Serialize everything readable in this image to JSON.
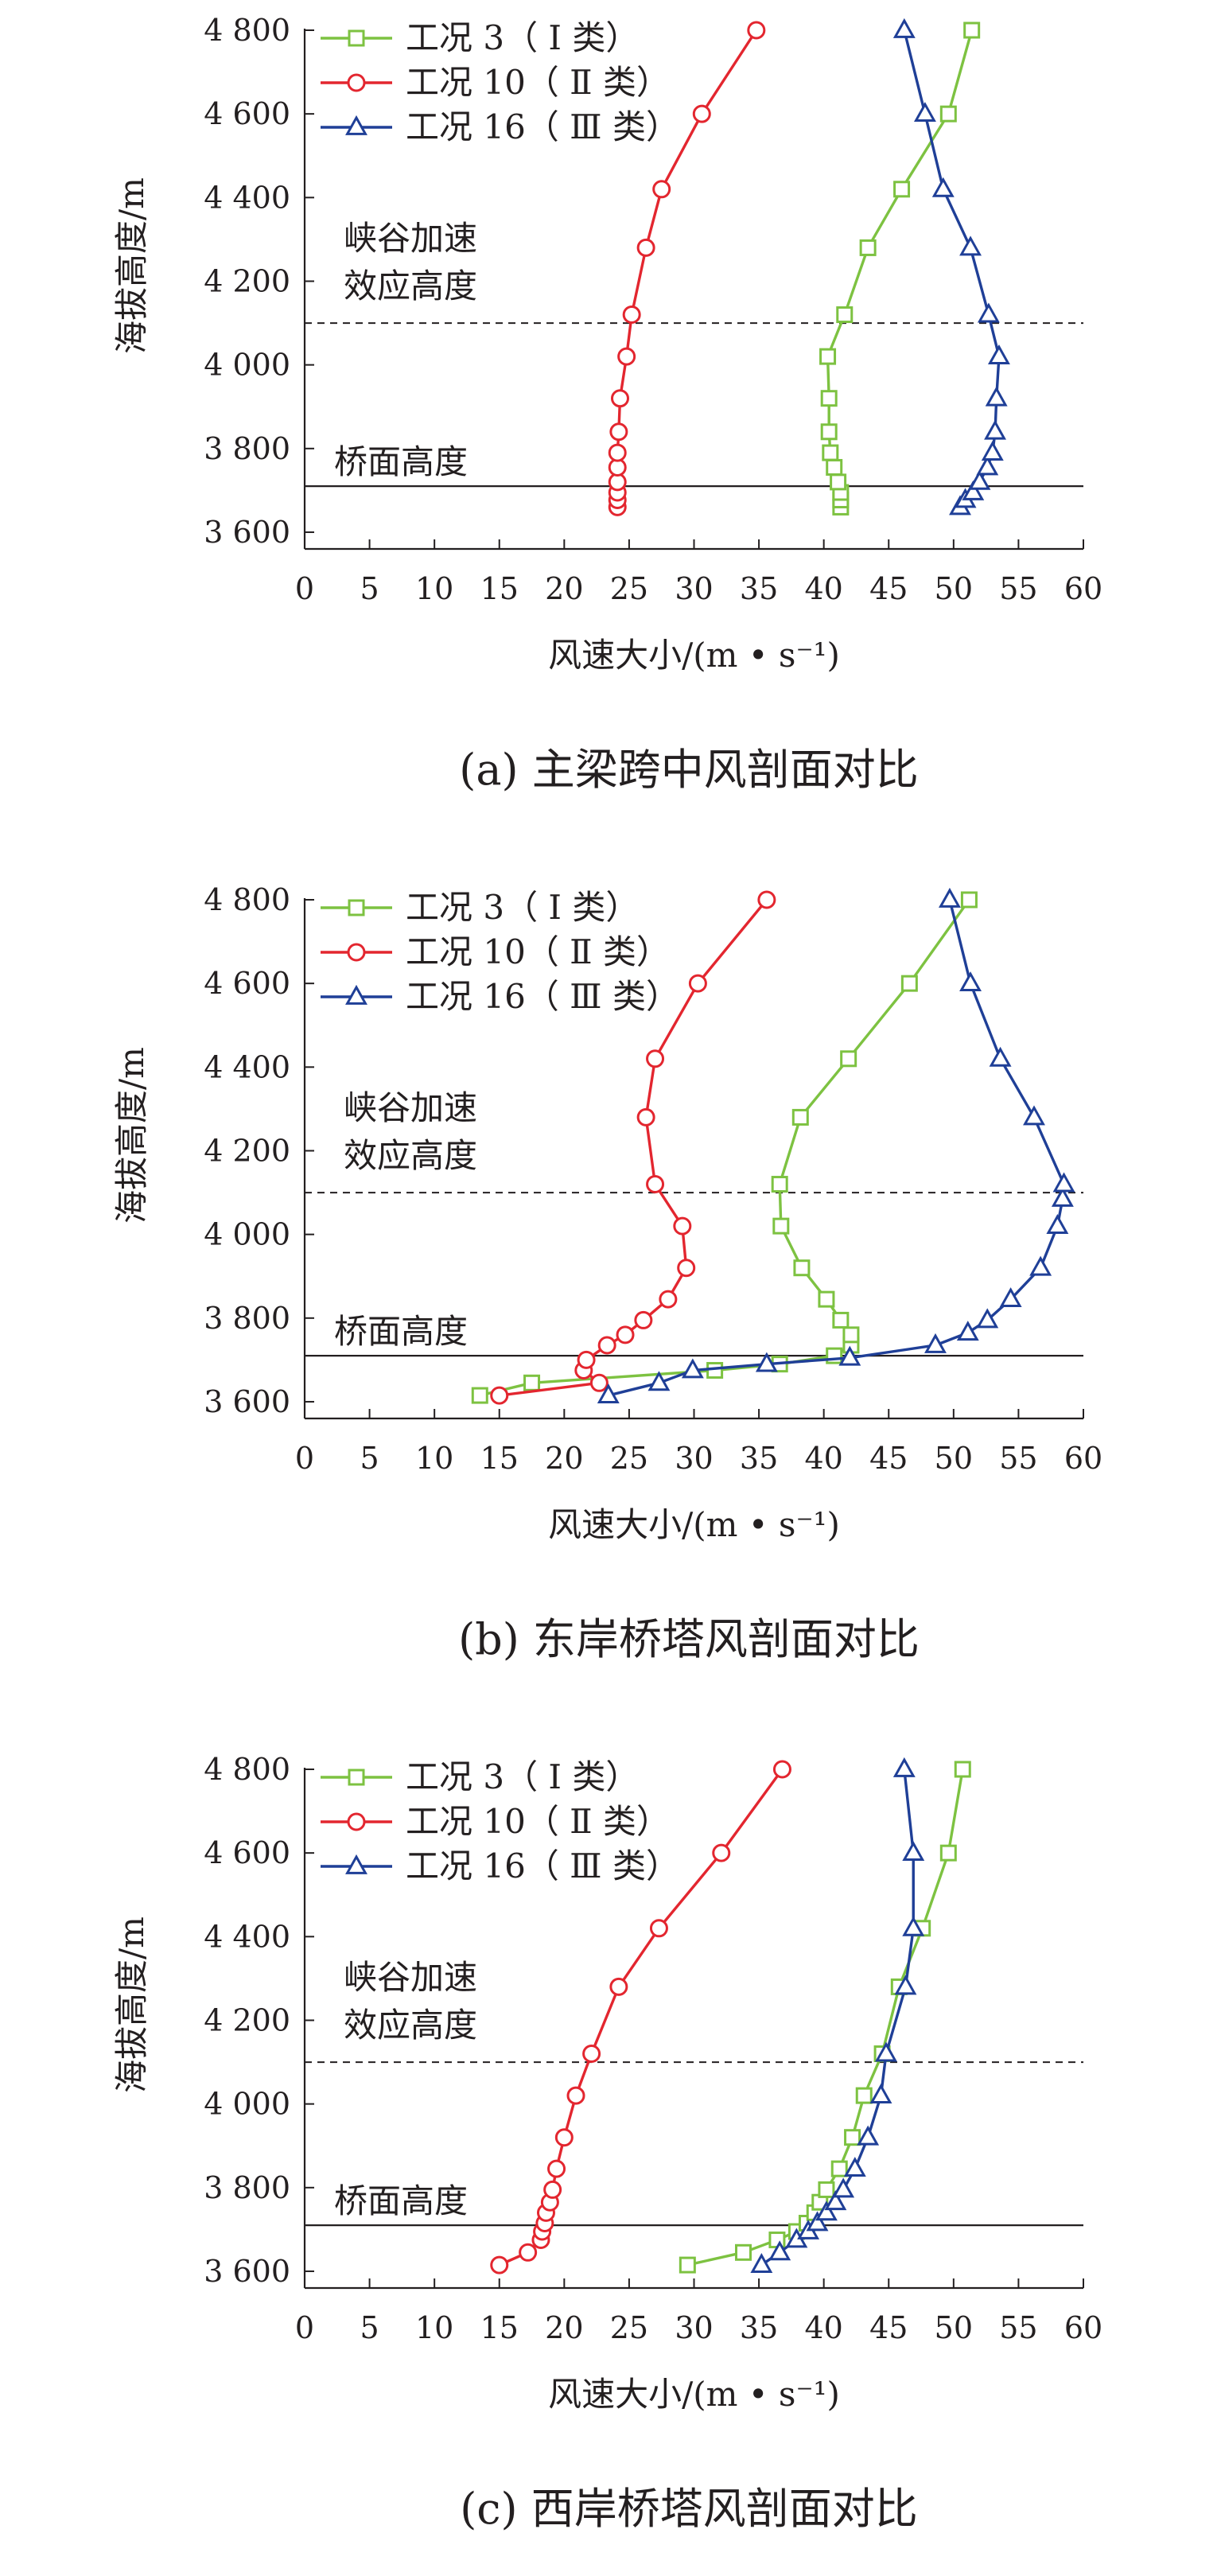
{
  "colors": {
    "case3": "#7dc241",
    "case10": "#e3262f",
    "case16": "#1f3f97",
    "axis": "#231f20"
  },
  "legend": [
    "工况 3（ I 类）",
    "工况 10（ Ⅱ 类）",
    "工况 16（ Ⅲ 类）"
  ],
  "xlabel": "风速大小/(m • s⁻¹)",
  "ylabel": "海拔高度/m",
  "annotations": {
    "canyon_line1": "峡谷加速",
    "canyon_line2": "效应高度",
    "deck": "桥面高度"
  },
  "ref_lines": {
    "canyon_height": 4100,
    "deck_height": 3710
  },
  "chart_data": [
    {
      "type": "line",
      "caption": "(a) 主梁跨中风剖面对比",
      "xlim": [
        0,
        60
      ],
      "ylim": [
        3560,
        4800
      ],
      "xticks": [
        0,
        5,
        10,
        15,
        20,
        25,
        30,
        35,
        40,
        45,
        50,
        55,
        60
      ],
      "yticks": [
        3600,
        3800,
        4000,
        4200,
        4400,
        4600,
        4800
      ],
      "ytick_labels": [
        "3 600",
        "3 800",
        "4 000",
        "4 200",
        "4 400",
        "4 600",
        "4 800"
      ],
      "series": [
        {
          "name": "工况 3（ I 类）",
          "color": "#7dc241",
          "marker": "square",
          "x": [
            41.3,
            41.3,
            41.3,
            41.1,
            40.8,
            40.5,
            40.4,
            40.4,
            40.3,
            41.6,
            43.4,
            46.0,
            49.6,
            51.4
          ],
          "y": [
            3660,
            3677,
            3695,
            3720,
            3755,
            3790,
            3840,
            3920,
            4020,
            4120,
            4280,
            4420,
            4600,
            4800
          ]
        },
        {
          "name": "工况 10（ Ⅱ 类）",
          "color": "#e3262f",
          "marker": "circle",
          "x": [
            24.1,
            24.1,
            24.1,
            24.1,
            24.1,
            24.1,
            24.2,
            24.3,
            24.8,
            25.2,
            26.3,
            27.5,
            30.6,
            34.8
          ],
          "y": [
            3660,
            3677,
            3695,
            3720,
            3755,
            3790,
            3840,
            3920,
            4020,
            4120,
            4280,
            4420,
            4600,
            4800
          ]
        },
        {
          "name": "工况 16（ Ⅲ 类）",
          "color": "#1f3f97",
          "marker": "triangle",
          "x": [
            50.5,
            50.9,
            51.5,
            52.0,
            52.6,
            53.0,
            53.2,
            53.3,
            53.5,
            52.7,
            51.3,
            49.2,
            47.8,
            46.2
          ],
          "y": [
            3660,
            3677,
            3695,
            3720,
            3755,
            3790,
            3840,
            3920,
            4020,
            4120,
            4280,
            4420,
            4600,
            4800
          ]
        }
      ]
    },
    {
      "type": "line",
      "caption": "(b) 东岸桥塔风剖面对比",
      "xlim": [
        0,
        60
      ],
      "ylim": [
        3560,
        4800
      ],
      "xticks": [
        0,
        5,
        10,
        15,
        20,
        25,
        30,
        35,
        40,
        45,
        50,
        55,
        60
      ],
      "yticks": [
        3600,
        3800,
        4000,
        4200,
        4400,
        4600,
        4800
      ],
      "ytick_labels": [
        "3 600",
        "3 800",
        "4 000",
        "4 200",
        "4 400",
        "4 600",
        "4 800"
      ],
      "series": [
        {
          "name": "工况 3（ I 类）",
          "color": "#7dc241",
          "marker": "square",
          "x": [
            13.5,
            17.5,
            31.6,
            36.6,
            40.8,
            42.1,
            42.1,
            41.3,
            40.2,
            38.3,
            36.7,
            36.6,
            38.2,
            41.9,
            46.6,
            51.2
          ],
          "y": [
            3615,
            3645,
            3675,
            3690,
            3710,
            3735,
            3760,
            3795,
            3845,
            3920,
            4020,
            4120,
            4280,
            4420,
            4600,
            4800
          ]
        },
        {
          "name": "工况 10（ Ⅱ 类）",
          "color": "#e3262f",
          "marker": "circle",
          "x": [
            15.0,
            22.7,
            21.5,
            21.7,
            23.3,
            24.7,
            26.1,
            28.0,
            29.4,
            29.1,
            27.0,
            26.3,
            27.0,
            30.3,
            35.6
          ],
          "y": [
            3615,
            3645,
            3675,
            3700,
            3735,
            3760,
            3795,
            3845,
            3920,
            4020,
            4120,
            4280,
            4420,
            4600,
            4800
          ]
        },
        {
          "name": "工况 16（ Ⅲ 类）",
          "color": "#1f3f97",
          "marker": "triangle",
          "x": [
            23.4,
            27.3,
            29.9,
            35.6,
            42.0,
            48.6,
            51.1,
            52.6,
            54.4,
            56.7,
            58.0,
            58.4,
            58.5,
            56.2,
            53.6,
            51.3,
            49.7
          ],
          "y": [
            3615,
            3645,
            3675,
            3690,
            3705,
            3735,
            3765,
            3795,
            3845,
            3920,
            4020,
            4085,
            4120,
            4280,
            4420,
            4600,
            4800
          ]
        }
      ]
    },
    {
      "type": "line",
      "caption": "(c) 西岸桥塔风剖面对比",
      "xlim": [
        0,
        60
      ],
      "ylim": [
        3560,
        4800
      ],
      "xticks": [
        0,
        5,
        10,
        15,
        20,
        25,
        30,
        35,
        40,
        45,
        50,
        55,
        60
      ],
      "yticks": [
        3600,
        3800,
        4000,
        4200,
        4400,
        4600,
        4800
      ],
      "ytick_labels": [
        "3 600",
        "3 800",
        "4 000",
        "4 200",
        "4 400",
        "4 600",
        "4 800"
      ],
      "series": [
        {
          "name": "工况 3（ I 类）",
          "color": "#7dc241",
          "marker": "square",
          "x": [
            29.5,
            33.8,
            36.4,
            37.9,
            38.7,
            39.3,
            39.7,
            40.2,
            41.2,
            42.2,
            43.1,
            44.5,
            45.8,
            47.6,
            49.6,
            50.7
          ],
          "y": [
            3615,
            3645,
            3675,
            3695,
            3715,
            3740,
            3765,
            3795,
            3845,
            3920,
            4020,
            4120,
            4280,
            4420,
            4600,
            4800
          ]
        },
        {
          "name": "工况 10（ Ⅱ 类）",
          "color": "#e3262f",
          "marker": "circle",
          "x": [
            15.0,
            17.2,
            18.2,
            18.3,
            18.5,
            18.6,
            18.9,
            19.1,
            19.4,
            20.0,
            20.9,
            22.1,
            24.2,
            27.3,
            32.1,
            36.8
          ],
          "y": [
            3615,
            3645,
            3675,
            3695,
            3715,
            3740,
            3765,
            3795,
            3845,
            3920,
            4020,
            4120,
            4280,
            4420,
            4600,
            4800
          ]
        },
        {
          "name": "工况 16（ Ⅲ 类）",
          "color": "#1f3f97",
          "marker": "triangle",
          "x": [
            35.2,
            36.6,
            37.9,
            38.8,
            39.5,
            40.2,
            40.9,
            41.5,
            42.4,
            43.4,
            44.4,
            44.8,
            46.3,
            46.9,
            46.9,
            46.2
          ],
          "y": [
            3615,
            3645,
            3675,
            3695,
            3715,
            3740,
            3765,
            3795,
            3845,
            3920,
            4020,
            4120,
            4280,
            4420,
            4600,
            4800
          ]
        }
      ]
    }
  ]
}
